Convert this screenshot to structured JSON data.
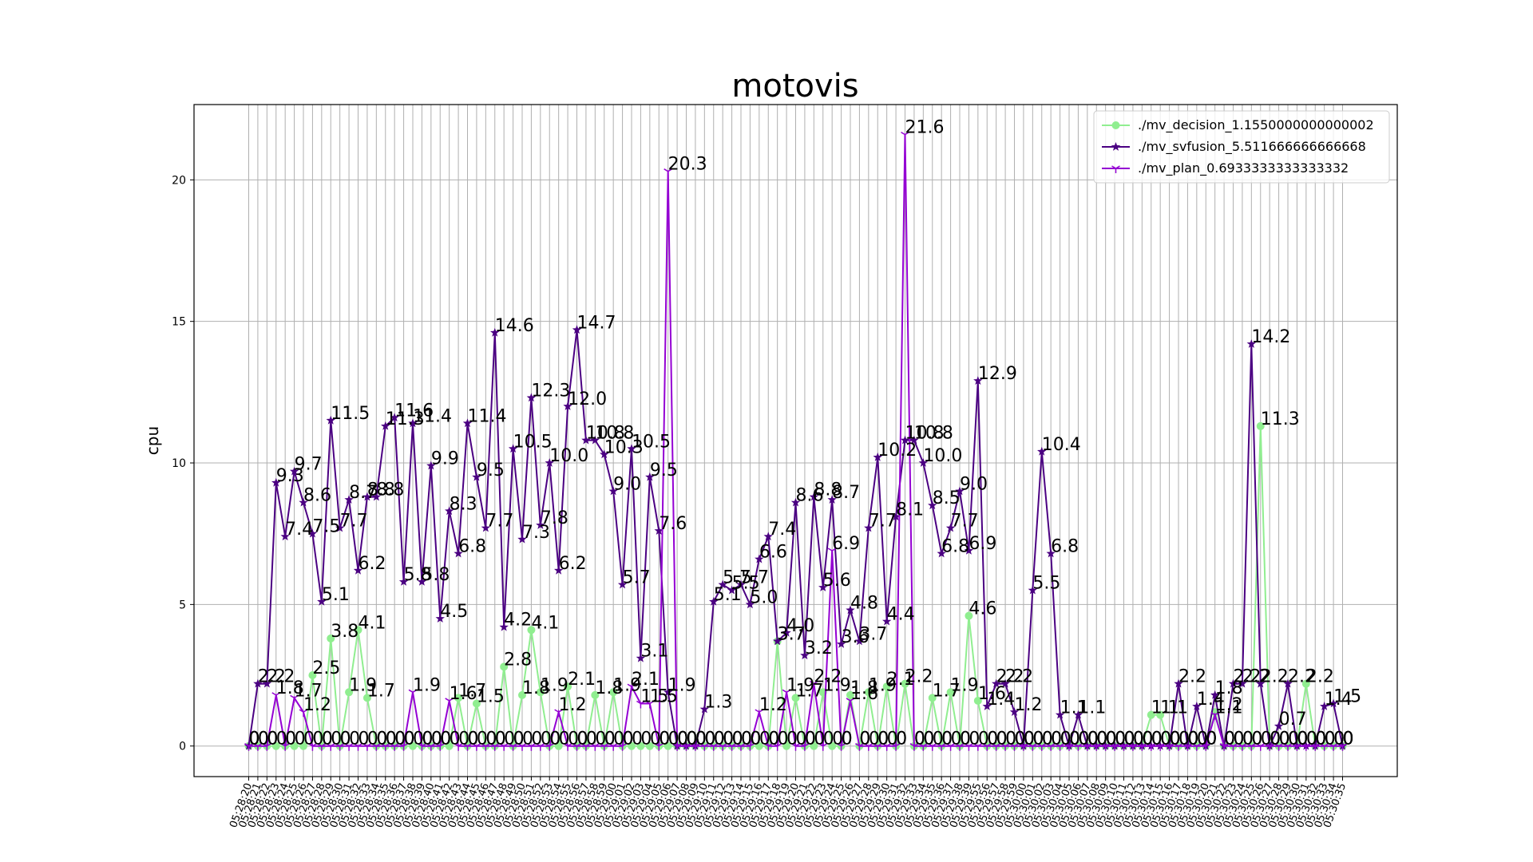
{
  "chart_data": {
    "type": "line",
    "title": "motovis",
    "y_label": "cpu",
    "categories": [
      "05:28:20",
      "05:28:21",
      "05:28:22",
      "05:28:23",
      "05:28:24",
      "05:28:25",
      "05:28:26",
      "05:28:27",
      "05:28:28",
      "05:28:29",
      "05:28:30",
      "05:28:31",
      "05:28:32",
      "05:28:33",
      "05:28:34",
      "05:28:35",
      "05:28:36",
      "05:28:37",
      "05:28:38",
      "05:28:39",
      "05:28:40",
      "05:28:41",
      "05:28:42",
      "05:28:43",
      "05:28:44",
      "05:28:45",
      "05:28:46",
      "05:28:47",
      "05:28:48",
      "05:28:49",
      "05:28:50",
      "05:28:51",
      "05:28:52",
      "05:28:53",
      "05:28:54",
      "05:28:55",
      "05:28:56",
      "05:28:57",
      "05:28:58",
      "05:28:59",
      "05:29:00",
      "05:29:01",
      "05:29:02",
      "05:29:03",
      "05:29:04",
      "05:29:05",
      "05:29:06",
      "05:29:07",
      "05:29:08",
      "05:29:09",
      "05:29:10",
      "05:29:11",
      "05:29:12",
      "05:29:13",
      "05:29:14",
      "05:29:15",
      "05:29:16",
      "05:29:17",
      "05:29:18",
      "05:29:19",
      "05:29:20",
      "05:29:21",
      "05:29:22",
      "05:29:23",
      "05:29:24",
      "05:29:25",
      "05:29:26",
      "05:29:27",
      "05:29:28",
      "05:29:29",
      "05:29:30",
      "05:29:31",
      "05:29:32",
      "05:29:33",
      "05:29:34",
      "05:29:35",
      "05:29:36",
      "05:29:37",
      "05:29:38",
      "05:29:39",
      "05:29:55",
      "05:29:56",
      "05:29:57",
      "05:29:58",
      "05:29:59",
      "05:30:00",
      "05:30:01",
      "05:30:02",
      "05:30:03",
      "05:30:04",
      "05:30:05",
      "05:30:06",
      "05:30:07",
      "05:30:08",
      "05:30:09",
      "05:30:10",
      "05:30:11",
      "05:30:12",
      "05:30:13",
      "05:30:14",
      "05:30:15",
      "05:30:16",
      "05:30:17",
      "05:30:18",
      "05:30:19",
      "05:30:20",
      "05:30:21",
      "05:30:22",
      "05:30:23",
      "05:30:24",
      "05:30:25",
      "05:30:26",
      "05:30:27",
      "05:30:28",
      "05:30:29",
      "05:30:30",
      "05:30:31",
      "05:30:32",
      "05:30:33",
      "05:30:34",
      "05:30:35"
    ],
    "series": [
      {
        "name": "./mv_decision_1.1550000000000002",
        "color": "#90ee90",
        "marker": "circle",
        "values": [
          0,
          0,
          0,
          0,
          0,
          0,
          0,
          2.5,
          0,
          3.8,
          0,
          1.9,
          4.1,
          1.7,
          0,
          0,
          0,
          0,
          0,
          0,
          0,
          0,
          0,
          1.7,
          0,
          1.5,
          0,
          0,
          2.8,
          0,
          1.8,
          4.1,
          1.9,
          0,
          0,
          2.1,
          0,
          0,
          1.8,
          0,
          1.9,
          0,
          0,
          0,
          0,
          0,
          0,
          0,
          0,
          0,
          0,
          0,
          0,
          0,
          0,
          0,
          0,
          0,
          3.7,
          0,
          1.7,
          0,
          0,
          1.9,
          0,
          0,
          1.8,
          0,
          1.9,
          0,
          2.1,
          0,
          2.2,
          0,
          0,
          1.7,
          0,
          1.9,
          0,
          4.6,
          1.6,
          0,
          0,
          0,
          0,
          0,
          0,
          0,
          0,
          0,
          0,
          0,
          0,
          0,
          0,
          0,
          0,
          0,
          0,
          1.1,
          1.1,
          0,
          0,
          0,
          0,
          0,
          1.2,
          0,
          0,
          0,
          0,
          11.3,
          0,
          0,
          0,
          0,
          2.2,
          0,
          0,
          0,
          0
        ]
      },
      {
        "name": "./mv_svfusion_5.511666666666668",
        "color": "#4b0082",
        "marker": "star",
        "values": [
          0,
          2.2,
          2.2,
          9.3,
          7.4,
          9.7,
          8.6,
          7.5,
          5.1,
          11.5,
          7.7,
          8.7,
          6.2,
          8.8,
          8.8,
          11.3,
          11.6,
          5.8,
          11.4,
          5.8,
          9.9,
          4.5,
          8.3,
          6.8,
          11.4,
          9.5,
          7.7,
          14.6,
          4.2,
          10.5,
          7.3,
          12.3,
          7.8,
          10.0,
          6.2,
          12.0,
          14.7,
          10.8,
          10.8,
          10.3,
          9.0,
          5.7,
          10.5,
          3.1,
          9.5,
          7.6,
          1.9,
          0,
          0,
          0,
          1.3,
          5.1,
          5.7,
          5.5,
          5.7,
          5.0,
          6.6,
          7.4,
          3.7,
          4.0,
          8.6,
          3.2,
          8.8,
          5.6,
          8.7,
          3.6,
          4.8,
          3.7,
          7.7,
          10.2,
          4.4,
          8.1,
          10.8,
          10.8,
          10.0,
          8.5,
          6.8,
          7.7,
          9.0,
          6.9,
          12.9,
          1.4,
          2.2,
          2.2,
          1.2,
          0,
          5.5,
          10.4,
          6.8,
          1.1,
          0,
          1.1,
          0,
          0,
          0,
          0,
          0,
          0,
          0,
          0,
          0,
          0,
          2.2,
          0,
          1.4,
          0,
          1.8,
          0,
          2.2,
          2.2,
          14.2,
          2.2,
          0,
          0.7,
          2.2,
          0,
          0,
          0,
          1.4,
          1.5,
          0
        ],
        "value_labels": [
          "0",
          "2.2",
          "2.2",
          "9.3",
          "7.4",
          "9.7",
          "8.6",
          "7.5",
          "5.1",
          "11.5",
          "7.7",
          "8.7",
          "6.2",
          "8.8",
          "8.8",
          "11.3",
          "11.6",
          "5.8",
          "11.4",
          "5.8",
          "9.9",
          "4.5",
          "8.3",
          "6.8",
          "11.4",
          "9.5",
          "7.7",
          "14.6",
          "4.2",
          "10.5",
          "7.3",
          "12.3",
          "7.8",
          "10.0",
          "6.2",
          "12.0",
          "14.7",
          "10.8",
          "10.8",
          "10.3",
          "9.0",
          "5.7",
          "10.5",
          "3.1",
          "9.5",
          "7.6",
          "1.9",
          "0",
          "0",
          "0",
          "1.3",
          "5.1",
          "5.7",
          "5.5",
          "5.7",
          "5.0",
          "6.6",
          "7.4",
          "3.7",
          "4.0",
          "8.6",
          "3.2",
          "8.8",
          "5.6",
          "8.7",
          "3.6",
          "4.8",
          "3.7",
          "7.7",
          "10.2",
          "4.4",
          "8.1",
          "10.8",
          "10.8",
          "10.0",
          "8.5",
          "6.8",
          "7.7",
          "9.0",
          "6.9",
          "12.9",
          "1.4",
          "2.2",
          "2.2",
          "1.2",
          "0",
          "5.5",
          "10.4",
          "6.8",
          "1.1",
          "0",
          "1.1",
          "0",
          "0",
          "0",
          "0",
          "0",
          "0",
          "0",
          "0",
          "0",
          "0",
          "2.2",
          "0",
          "1.4",
          "0",
          "1.8",
          "0",
          "2.2",
          "2.2",
          "14.2",
          "2.2",
          "0",
          "0.7",
          "2.2",
          "0",
          "0",
          "0",
          "1.4",
          "1.5",
          "0"
        ]
      },
      {
        "name": "./mv_plan_0.6933333333333332",
        "color": "#9400d3",
        "marker": "tri",
        "values": [
          0,
          0,
          0,
          1.8,
          0,
          1.7,
          1.2,
          0,
          0,
          0,
          0,
          0,
          0,
          0,
          0,
          0,
          0,
          0,
          1.9,
          0,
          0,
          0,
          1.6,
          0,
          0,
          0,
          0,
          0,
          0,
          0,
          0,
          0,
          0,
          0,
          1.2,
          0,
          0,
          0,
          0,
          0,
          0,
          0,
          2.1,
          1.5,
          1.5,
          0,
          20.3,
          0,
          0,
          0,
          0,
          0,
          0,
          0,
          0,
          0,
          1.2,
          0,
          0,
          1.9,
          0,
          0,
          2.2,
          0,
          6.9,
          0,
          1.6,
          0,
          0,
          0,
          0,
          0,
          21.6,
          0,
          0,
          0,
          0,
          0,
          0,
          0,
          0,
          0,
          0,
          0,
          0,
          0,
          0,
          0,
          0,
          0,
          0,
          0,
          0,
          0,
          0,
          0,
          0,
          0,
          0,
          0,
          0,
          0,
          0,
          0,
          0,
          0,
          1.1,
          0,
          0,
          0,
          0,
          0,
          0,
          0,
          0,
          0,
          0,
          0,
          0,
          0,
          0
        ]
      }
    ],
    "ylim": [
      -1.08,
      22.66
    ],
    "yticks": [
      0,
      5,
      10,
      15,
      20
    ],
    "grid": true,
    "legend": "upper right"
  }
}
